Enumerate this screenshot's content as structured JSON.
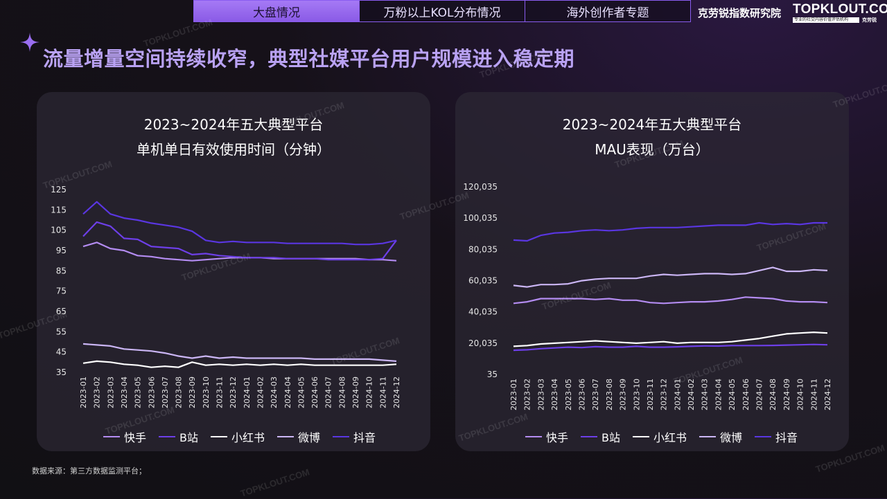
{
  "nav": {
    "tabs": [
      {
        "label": "大盘情况",
        "active": true
      },
      {
        "label": "万粉以上KOL分布情况",
        "active": false
      },
      {
        "label": "海外创作者专题",
        "active": false
      }
    ]
  },
  "brand": {
    "text": "克劳锐指数研究院",
    "logo_main": "TOPKLOUT.COM",
    "logo_sub": "专业的社交内容价值评估机构",
    "logo_cn": "克劳锐"
  },
  "headline": "流量增量空间持续收窄，典型社媒平台用户规模进入稳定期",
  "watermark": "TOPKLOUT.COM",
  "source": "数据来源：第三方数据监测平台；",
  "colors": {
    "快手": "#b48cf2",
    "B站": "#6d3fe8",
    "小红书": "#ffffff",
    "微博": "#cbb6f5",
    "抖音": "#5a36e2",
    "accent": "#9a6ef0"
  },
  "chart_data": [
    {
      "type": "line",
      "title_line1": "2023~2024年五大典型平台",
      "title_line2": "单机单日有效使用时间（分钟）",
      "ylim": [
        35,
        125
      ],
      "yticks": [
        "125",
        "115",
        "105",
        "95",
        "85",
        "75",
        "65",
        "55",
        "45",
        "35"
      ],
      "categories": [
        "2023-01",
        "2023-02",
        "2023-03",
        "2023-04",
        "2023-05",
        "2023-06",
        "2023-07",
        "2023-08",
        "2023-09",
        "2023-10",
        "2023-11",
        "2023-12",
        "2024-01",
        "2024-02",
        "2024-03",
        "2024-04",
        "2024-05",
        "2024-06",
        "2024-07",
        "2024-08",
        "2024-09",
        "2024-10",
        "2024-11",
        "2024-12"
      ],
      "series": [
        {
          "name": "快手",
          "values": [
            97,
            99,
            96,
            95,
            92.5,
            92,
            91,
            90.5,
            90,
            90.5,
            91,
            91.5,
            91.5,
            91.5,
            91,
            91,
            91,
            91,
            91,
            91,
            91,
            90.5,
            90.5,
            90
          ]
        },
        {
          "name": "B站",
          "values": [
            102,
            109,
            107,
            101,
            100.5,
            97,
            96.5,
            96,
            93,
            93.5,
            92.5,
            92,
            91.5,
            91.5,
            91.5,
            91,
            91,
            91,
            90.5,
            90.5,
            90.5,
            90.5,
            91,
            100
          ]
        },
        {
          "name": "小红书",
          "values": [
            39.5,
            40.5,
            40,
            39,
            38.5,
            37.5,
            38,
            37.5,
            40,
            38.5,
            39,
            38.5,
            39,
            38.5,
            39,
            38.5,
            39,
            38.5,
            38.5,
            38.5,
            38.5,
            38.5,
            38.5,
            39
          ]
        },
        {
          "name": "微博",
          "values": [
            49,
            48.5,
            48,
            46.5,
            46,
            45.5,
            44.5,
            43,
            42,
            43,
            42,
            42.5,
            42,
            42,
            42,
            42,
            42,
            41.5,
            41.5,
            41.5,
            41.5,
            41.5,
            41,
            40.5
          ]
        },
        {
          "name": "抖音",
          "values": [
            113,
            119,
            113,
            111,
            110,
            108.5,
            107.5,
            106.5,
            104.5,
            100,
            99,
            99.5,
            99,
            99,
            99,
            98.5,
            98.5,
            98.5,
            98.5,
            98.5,
            98,
            98,
            98.5,
            100
          ]
        }
      ]
    },
    {
      "type": "line",
      "title_line1": "2023~2024年五大典型平台",
      "title_line2": "MAU表现（万台）",
      "ylim": [
        35,
        120035
      ],
      "yticks": [
        "120,035",
        "100,035",
        "80,035",
        "60,035",
        "40,035",
        "20,035",
        "35"
      ],
      "categories": [
        "2023-01",
        "2023-02",
        "2023-03",
        "2023-04",
        "2023-05",
        "2023-06",
        "2023-07",
        "2023-08",
        "2023-09",
        "2023-10",
        "2023-11",
        "2023-12",
        "2024-01",
        "2024-02",
        "2024-03",
        "2024-04",
        "2024-05",
        "2024-06",
        "2024-07",
        "2024-08",
        "2024-09",
        "2024-10",
        "2024-11",
        "2024-12"
      ],
      "series": [
        {
          "name": "快手",
          "values": [
            45500,
            46500,
            48500,
            48500,
            48500,
            48500,
            48000,
            48500,
            47500,
            47500,
            46000,
            45500,
            46000,
            46500,
            46500,
            47000,
            48000,
            49500,
            49000,
            48500,
            47000,
            46500,
            46500,
            46000
          ]
        },
        {
          "name": "B站",
          "values": [
            15500,
            15800,
            16500,
            17000,
            17500,
            17200,
            17800,
            17500,
            17500,
            18000,
            17500,
            17500,
            17700,
            18000,
            18300,
            18200,
            18500,
            18500,
            18500,
            18600,
            18800,
            19000,
            19200,
            19000
          ]
        },
        {
          "name": "小红书",
          "values": [
            18000,
            18500,
            19500,
            20000,
            20500,
            21000,
            21500,
            21000,
            20500,
            20000,
            20500,
            21000,
            20000,
            20500,
            20500,
            20500,
            21000,
            22000,
            23000,
            24500,
            26000,
            26500,
            27000,
            26500
          ]
        },
        {
          "name": "微博",
          "values": [
            57000,
            56000,
            57500,
            57500,
            58000,
            60000,
            61000,
            61500,
            61500,
            61500,
            63000,
            64000,
            63500,
            64000,
            64500,
            64500,
            64000,
            64500,
            66500,
            68500,
            66000,
            66000,
            67000,
            66500
          ]
        },
        {
          "name": "抖音",
          "values": [
            86000,
            85500,
            89000,
            90500,
            91000,
            92000,
            92500,
            92000,
            92500,
            93500,
            94000,
            94000,
            94000,
            94500,
            95000,
            95500,
            95500,
            95500,
            97000,
            96000,
            96500,
            96000,
            97000,
            97000
          ]
        }
      ]
    }
  ]
}
